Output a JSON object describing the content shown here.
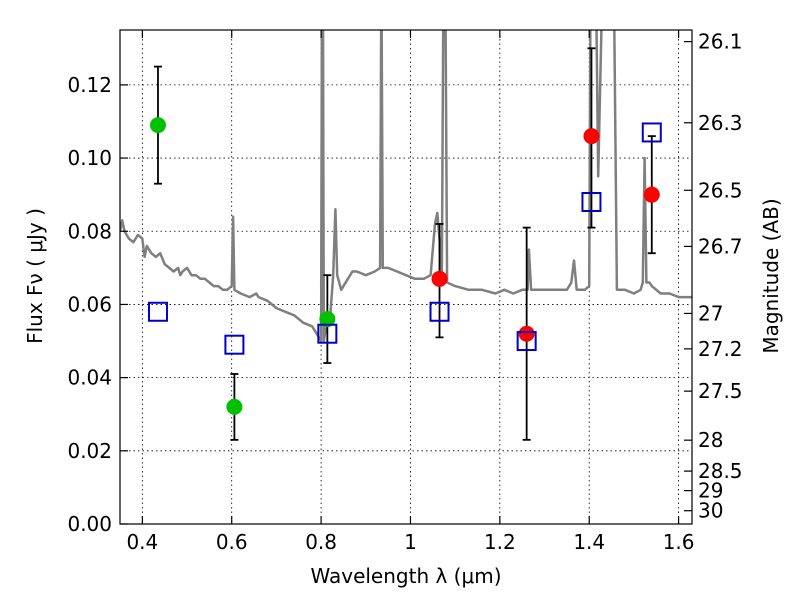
{
  "chart_data": {
    "type": "scatter",
    "title": "",
    "xlabel": "Wavelength  λ (μm)",
    "ylabel": "Flux  Fν  ( μJy )",
    "ylabel_right": "Magnitude (AB)",
    "xlim": [
      0.35,
      1.63
    ],
    "ylim": [
      0.0,
      0.135
    ],
    "grid": true,
    "x_ticks": [
      0.4,
      0.6,
      0.8,
      1.0,
      1.2,
      1.4,
      1.6
    ],
    "x_tick_labels": [
      "0.4",
      "0.6",
      "0.8",
      "1",
      "1.2",
      "1.4",
      "1.6"
    ],
    "y_ticks": [
      0.0,
      0.02,
      0.04,
      0.06,
      0.08,
      0.1,
      0.12
    ],
    "y_tick_labels": [
      "0.00",
      "0.02",
      "0.04",
      "0.06",
      "0.08",
      "0.10",
      "0.12"
    ],
    "right_ticks": [
      26.1,
      26.3,
      26.5,
      26.7,
      27,
      27.2,
      27.5,
      28,
      28.5,
      29,
      30
    ],
    "right_tick_labels": [
      "26.1",
      "26.3",
      "26.5",
      "26.7",
      "27",
      "27.2",
      "27.5",
      "28",
      "28.5",
      "29",
      "30"
    ],
    "colors": {
      "green": "#00c000",
      "red": "#ff0000",
      "blue": "#0000cc",
      "spectrum": "#7f7f7f"
    },
    "series": [
      {
        "marker": "circle",
        "color": "green",
        "points": [
          {
            "x": 0.435,
            "y": 0.109,
            "ylo": 0.093,
            "yhi": 0.125
          },
          {
            "x": 0.606,
            "y": 0.032,
            "ylo": 0.023,
            "yhi": 0.041
          },
          {
            "x": 0.814,
            "y": 0.056,
            "ylo": 0.044,
            "yhi": 0.068
          }
        ]
      },
      {
        "marker": "circle",
        "color": "red",
        "points": [
          {
            "x": 1.065,
            "y": 0.067,
            "ylo": 0.051,
            "yhi": 0.082
          },
          {
            "x": 1.26,
            "y": 0.052,
            "ylo": 0.023,
            "yhi": 0.081
          },
          {
            "x": 1.405,
            "y": 0.106,
            "ylo": 0.081,
            "yhi": 0.13
          },
          {
            "x": 1.54,
            "y": 0.09,
            "ylo": 0.074,
            "yhi": 0.106
          }
        ]
      },
      {
        "marker": "open-square",
        "color": "blue",
        "points": [
          {
            "x": 0.435,
            "y": 0.058
          },
          {
            "x": 0.606,
            "y": 0.049
          },
          {
            "x": 0.814,
            "y": 0.052
          },
          {
            "x": 1.065,
            "y": 0.058
          },
          {
            "x": 1.26,
            "y": 0.05
          },
          {
            "x": 1.405,
            "y": 0.088
          },
          {
            "x": 1.54,
            "y": 0.107
          }
        ]
      }
    ],
    "spectrum": {
      "color": "spectrum",
      "points": [
        [
          0.35,
          0.08
        ],
        [
          0.355,
          0.083
        ],
        [
          0.36,
          0.08
        ],
        [
          0.37,
          0.078
        ],
        [
          0.38,
          0.077
        ],
        [
          0.39,
          0.079
        ],
        [
          0.4,
          0.078
        ],
        [
          0.405,
          0.073
        ],
        [
          0.41,
          0.076
        ],
        [
          0.42,
          0.074
        ],
        [
          0.43,
          0.073
        ],
        [
          0.44,
          0.074
        ],
        [
          0.45,
          0.071
        ],
        [
          0.46,
          0.07
        ],
        [
          0.47,
          0.069
        ],
        [
          0.48,
          0.07
        ],
        [
          0.485,
          0.068
        ],
        [
          0.49,
          0.069
        ],
        [
          0.5,
          0.07
        ],
        [
          0.51,
          0.068
        ],
        [
          0.52,
          0.068
        ],
        [
          0.53,
          0.067
        ],
        [
          0.54,
          0.067
        ],
        [
          0.55,
          0.066
        ],
        [
          0.56,
          0.065
        ],
        [
          0.57,
          0.065
        ],
        [
          0.58,
          0.064
        ],
        [
          0.59,
          0.064
        ],
        [
          0.6,
          0.065
        ],
        [
          0.603,
          0.084
        ],
        [
          0.606,
          0.064
        ],
        [
          0.62,
          0.063
        ],
        [
          0.64,
          0.062
        ],
        [
          0.655,
          0.063
        ],
        [
          0.66,
          0.062
        ],
        [
          0.68,
          0.061
        ],
        [
          0.7,
          0.059
        ],
        [
          0.72,
          0.058
        ],
        [
          0.74,
          0.057
        ],
        [
          0.76,
          0.055
        ],
        [
          0.78,
          0.054
        ],
        [
          0.79,
          0.052
        ],
        [
          0.795,
          0.051
        ],
        [
          0.8,
          0.05
        ],
        [
          0.802,
          0.15
        ],
        [
          0.804,
          0.15
        ],
        [
          0.806,
          0.05
        ],
        [
          0.81,
          0.053
        ],
        [
          0.82,
          0.056
        ],
        [
          0.827,
          0.068
        ],
        [
          0.832,
          0.086
        ],
        [
          0.836,
          0.068
        ],
        [
          0.845,
          0.064
        ],
        [
          0.86,
          0.067
        ],
        [
          0.87,
          0.069
        ],
        [
          0.88,
          0.069
        ],
        [
          0.9,
          0.068
        ],
        [
          0.92,
          0.069
        ],
        [
          0.932,
          0.07
        ],
        [
          0.935,
          0.15
        ],
        [
          0.938,
          0.07
        ],
        [
          0.95,
          0.07
        ],
        [
          0.97,
          0.069
        ],
        [
          0.99,
          0.068
        ],
        [
          1.01,
          0.067
        ],
        [
          1.03,
          0.067
        ],
        [
          1.045,
          0.068
        ],
        [
          1.055,
          0.082
        ],
        [
          1.06,
          0.085
        ],
        [
          1.065,
          0.078
        ],
        [
          1.07,
          0.066
        ],
        [
          1.074,
          0.15
        ],
        [
          1.078,
          0.15
        ],
        [
          1.082,
          0.066
        ],
        [
          1.1,
          0.065
        ],
        [
          1.13,
          0.064
        ],
        [
          1.16,
          0.064
        ],
        [
          1.19,
          0.063
        ],
        [
          1.21,
          0.064
        ],
        [
          1.23,
          0.063
        ],
        [
          1.25,
          0.064
        ],
        [
          1.262,
          0.064
        ],
        [
          1.265,
          0.075
        ],
        [
          1.27,
          0.064
        ],
        [
          1.3,
          0.064
        ],
        [
          1.33,
          0.064
        ],
        [
          1.35,
          0.064
        ],
        [
          1.36,
          0.066
        ],
        [
          1.366,
          0.072
        ],
        [
          1.372,
          0.064
        ],
        [
          1.39,
          0.064
        ],
        [
          1.4,
          0.065
        ],
        [
          1.403,
          0.15
        ],
        [
          1.415,
          0.15
        ],
        [
          1.42,
          0.095
        ],
        [
          1.43,
          0.15
        ],
        [
          1.455,
          0.15
        ],
        [
          1.462,
          0.064
        ],
        [
          1.48,
          0.064
        ],
        [
          1.5,
          0.063
        ],
        [
          1.515,
          0.064
        ],
        [
          1.52,
          0.066
        ],
        [
          1.524,
          0.1
        ],
        [
          1.528,
          0.066
        ],
        [
          1.535,
          0.066
        ],
        [
          1.54,
          0.065
        ],
        [
          1.56,
          0.063
        ],
        [
          1.58,
          0.063
        ],
        [
          1.6,
          0.062
        ],
        [
          1.63,
          0.062
        ]
      ]
    }
  }
}
